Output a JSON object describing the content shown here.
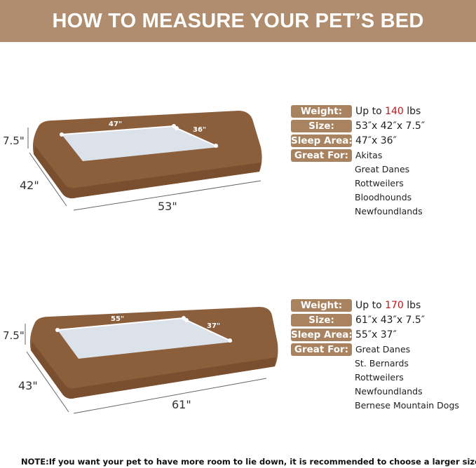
{
  "header": {
    "title": "HOW TO MEASURE YOUR PET’S BED"
  },
  "colors": {
    "header_bg": "#B08D6E",
    "label_bg": "#A9825F",
    "highlight": "#C0161A",
    "bed": "#8B5E3C"
  },
  "beds": [
    {
      "dims": {
        "length": "53\"",
        "width": "42\"",
        "height": "7.5\"",
        "sleep_length": "47\"",
        "sleep_width": "36\""
      },
      "specs": {
        "weight_label": "Weight:",
        "weight_prefix": "Up to",
        "weight_value": "140",
        "weight_unit": "lbs",
        "size_label": "Size:",
        "size": "53″x 42″x 7.5″",
        "sleep_label": "Sleep Area:",
        "sleep": "47″x 36″",
        "great_label": "Great For:",
        "breeds": [
          "Akitas",
          "Great Danes",
          "Rottweilers",
          "Bloodhounds",
          "Newfoundlands"
        ]
      }
    },
    {
      "dims": {
        "length": "61\"",
        "width": "43\"",
        "height": "7.5\"",
        "sleep_length": "55\"",
        "sleep_width": "37\""
      },
      "specs": {
        "weight_label": "Weight:",
        "weight_prefix": "Up to",
        "weight_value": "170",
        "weight_unit": "lbs",
        "size_label": "Size:",
        "size": "61″x 43″x 7.5″",
        "sleep_label": "Sleep Area:",
        "sleep": "55″x 37″",
        "great_label": "Great For:",
        "breeds": [
          "Great Danes",
          "St. Bernards",
          "Rottweilers",
          "Newfoundlands",
          "Bernese Mountain Dogs"
        ]
      }
    }
  ],
  "note": "NOTE:If you want your pet to have more room to lie down, it is recommended to choose a larger size"
}
